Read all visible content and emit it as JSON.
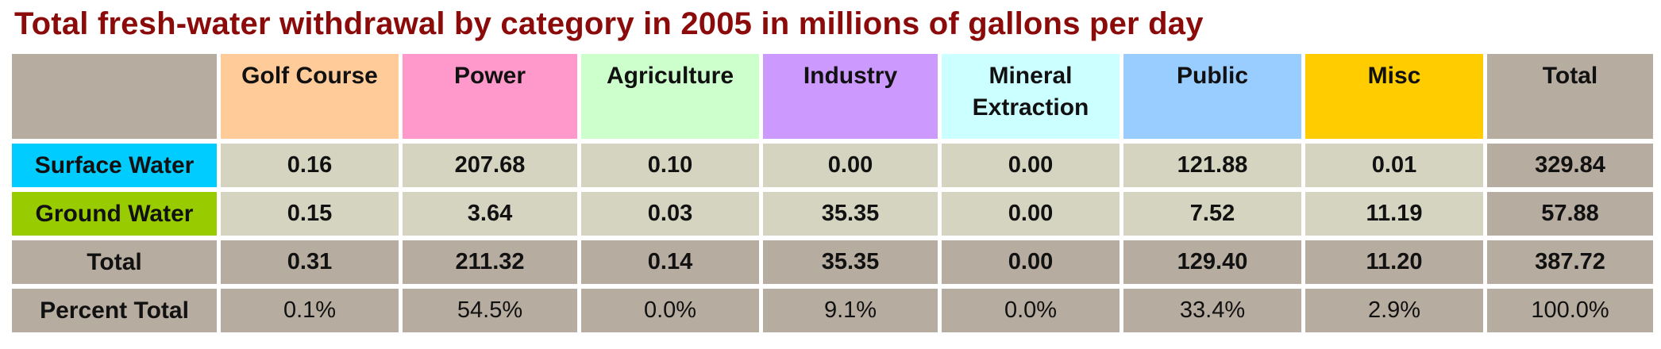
{
  "title": "Total fresh-water withdrawal by category in 2005 in millions of gallons per day",
  "chart_data": {
    "type": "table",
    "title": "Total fresh-water withdrawal by category in 2005 in millions of gallons per day",
    "columns": [
      "Golf Course",
      "Power",
      "Agriculture",
      "Industry",
      "Mineral Extraction",
      "Public",
      "Misc",
      "Total"
    ],
    "column_colors": [
      "#ffcc99",
      "#ff99cc",
      "#ccffcc",
      "#cc99ff",
      "#ccffff",
      "#99ccff",
      "#ffcc00",
      "#b7aca0"
    ],
    "rows": [
      {
        "label": "Surface Water",
        "label_color": "#00ccff",
        "values": [
          "0.16",
          "207.68",
          "0.10",
          "0.00",
          "0.00",
          "121.88",
          "0.01",
          "329.84"
        ]
      },
      {
        "label": "Ground Water",
        "label_color": "#99cc00",
        "values": [
          "0.15",
          "3.64",
          "0.03",
          "35.35",
          "0.00",
          "7.52",
          "11.19",
          "57.88"
        ]
      },
      {
        "label": "Total",
        "label_color": "#b7aca0",
        "values": [
          "0.31",
          "211.32",
          "0.14",
          "35.35",
          "0.00",
          "129.40",
          "11.20",
          "387.72"
        ]
      },
      {
        "label": "Percent Total",
        "label_color": "#b7aca0",
        "values": [
          "0.1%",
          "54.5%",
          "0.0%",
          "9.1%",
          "0.0%",
          "33.4%",
          "2.9%",
          "100.0%"
        ]
      }
    ],
    "cell_color": "#d4d4c0",
    "total_color": "#b7aca0"
  }
}
